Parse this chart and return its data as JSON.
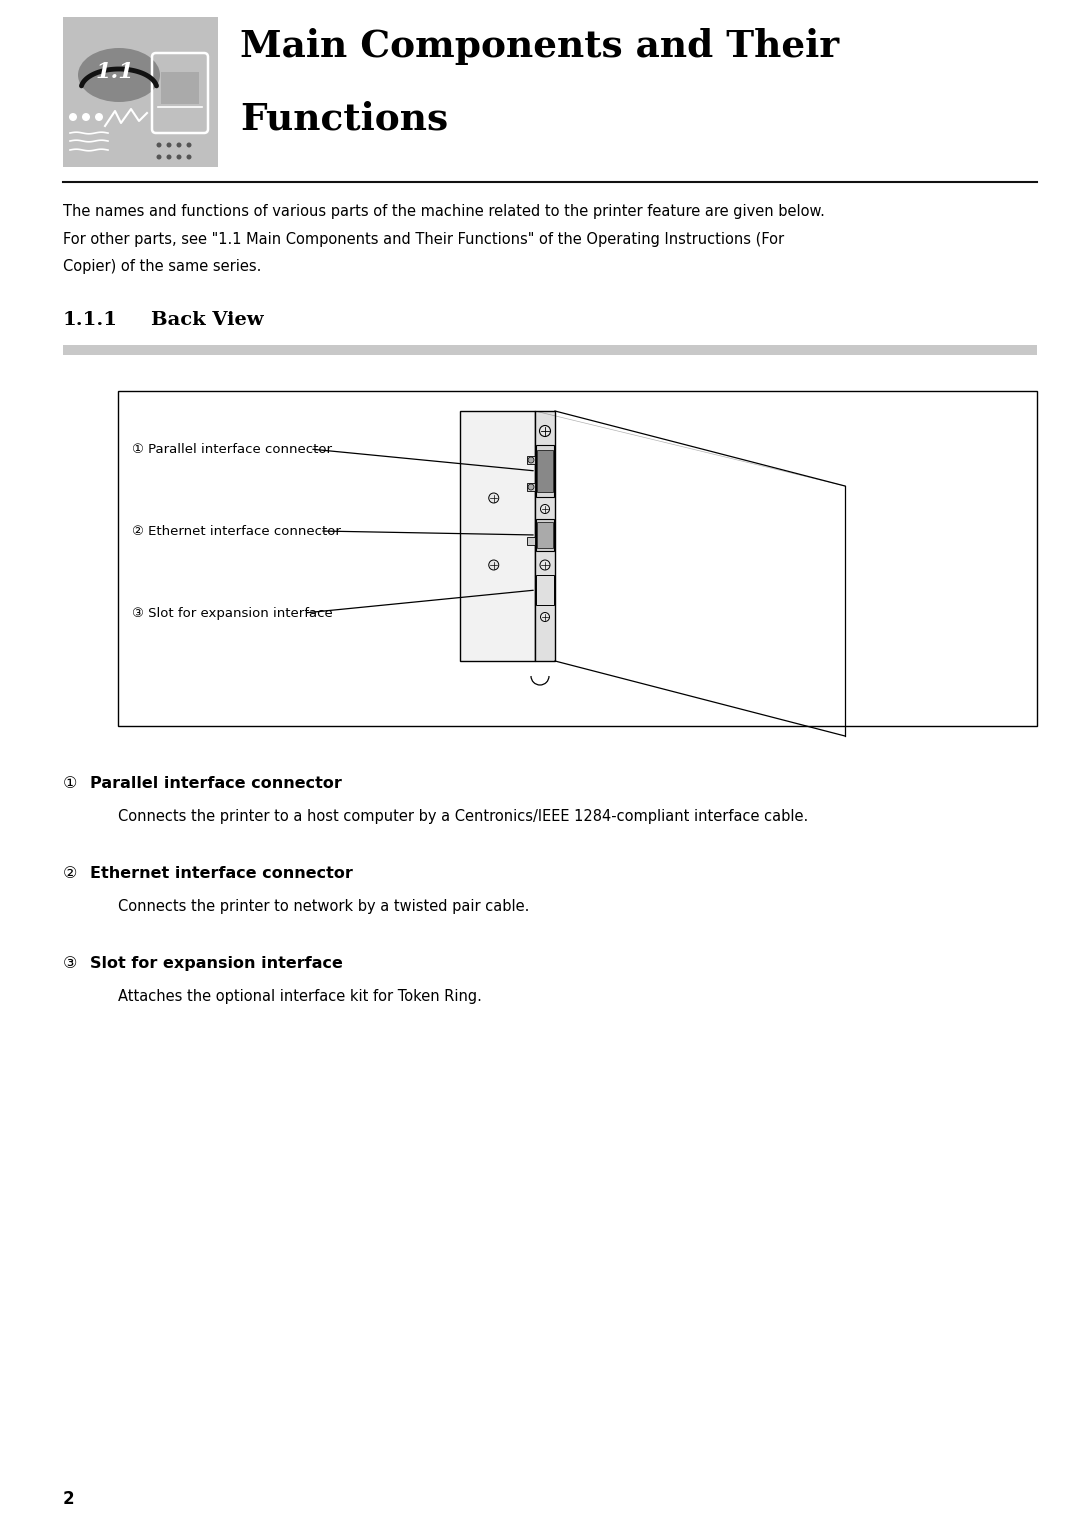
{
  "page_width": 10.8,
  "page_height": 15.28,
  "bg_color": "#ffffff",
  "header_bg": "#c0c0c0",
  "title_line1": "Main Components and Their",
  "title_line2": "Functions",
  "chapter_num": "1.1",
  "section_num": "1.1.1",
  "section_title": "Back View",
  "intro_line1": "The names and functions of various parts of the machine related to the printer feature are given below.",
  "intro_line2": "For other parts, see \"1.1 Main Components and Their Functions\" of the Operating Instructions (For",
  "intro_line3": "Copier) of the same series.",
  "diagram_labels": [
    {
      "num": "①",
      "text": "Parallel interface connector"
    },
    {
      "num": "②",
      "text": "Ethernet interface connector"
    },
    {
      "num": "③",
      "text": "Slot for expansion interface"
    }
  ],
  "items": [
    {
      "num": "①",
      "title": "Parallel interface connector",
      "desc": "Connects the printer to a host computer by a Centronics/IEEE 1284-compliant interface cable."
    },
    {
      "num": "②",
      "title": "Ethernet interface connector",
      "desc": "Connects the printer to network by a twisted pair cable."
    },
    {
      "num": "③",
      "title": "Slot for expansion interface",
      "desc": "Attaches the optional interface kit for Token Ring."
    }
  ],
  "footer_page": "2"
}
